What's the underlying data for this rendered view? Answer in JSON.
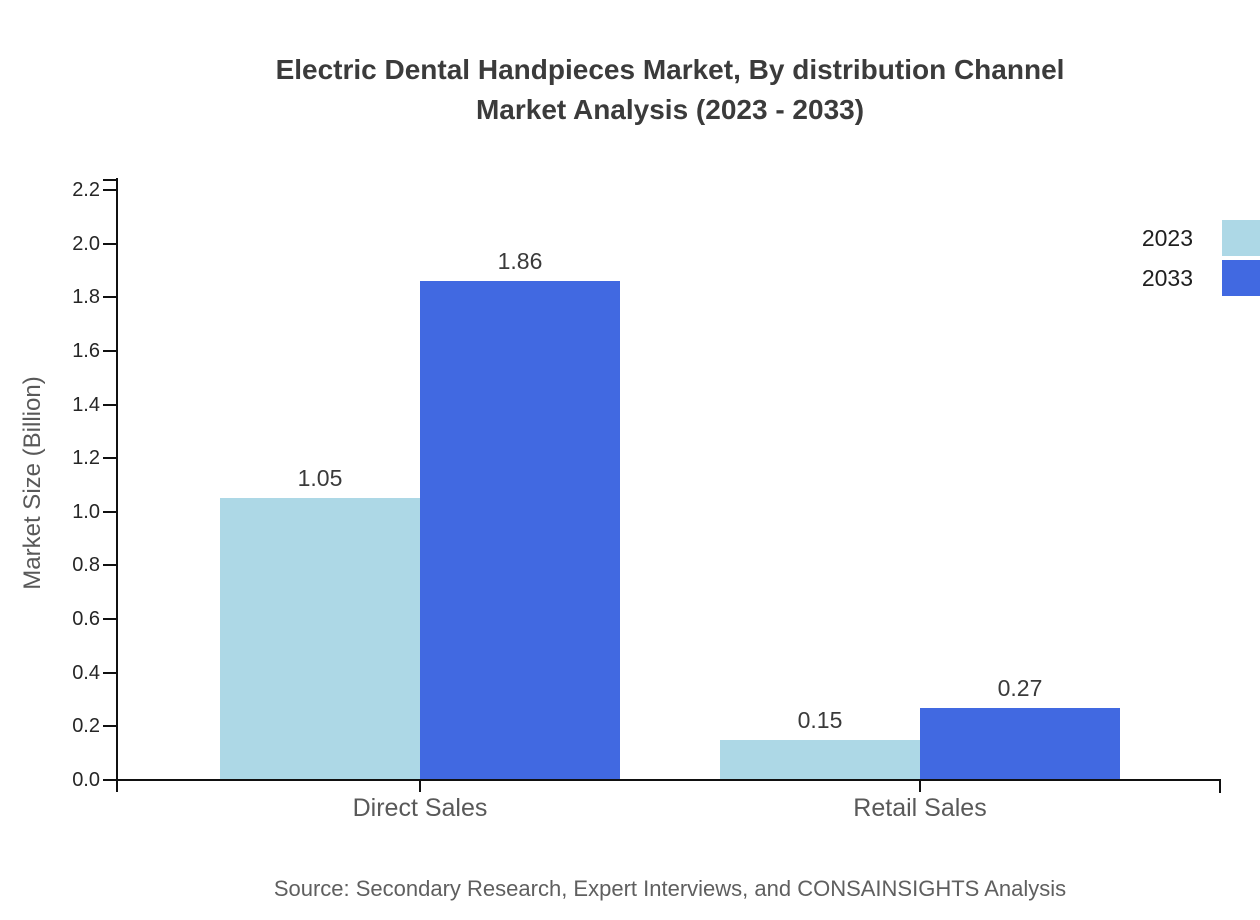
{
  "title": {
    "line1": "Electric Dental Handpieces Market, By distribution Channel",
    "line2": "Market Analysis (2023 - 2033)"
  },
  "source_note": "Source: Secondary Research, Expert Interviews, and CONSAINSIGHTS Analysis",
  "legend": [
    {
      "label": "2023",
      "color": "#ADD8E6"
    },
    {
      "label": "2033",
      "color": "#4169E1"
    }
  ],
  "colors": {
    "series_2023": "#ADD8E6",
    "series_2033": "#4169E1",
    "axis": "#111111",
    "title_text": "#3b3b3b",
    "tick_text": "#262626",
    "category_text": "#595959",
    "value_text": "#3a3a3a",
    "source_text": "#5f5f5f"
  },
  "chart_data": {
    "type": "bar",
    "title": "Electric Dental Handpieces Market, By distribution Channel Market Analysis (2023 - 2033)",
    "categories": [
      "Direct Sales",
      "Retail Sales"
    ],
    "series": [
      {
        "name": "2023",
        "color": "#ADD8E6",
        "values": [
          1.05,
          0.15
        ]
      },
      {
        "name": "2033",
        "color": "#4169E1",
        "values": [
          1.86,
          0.27
        ]
      }
    ],
    "xlabel": "",
    "ylabel": "Market Size (Billion)",
    "ylim": [
      0,
      2.2
    ],
    "ytick_step": 0.2,
    "ytick_decimals": 1,
    "value_label_decimals": 2,
    "grid": false,
    "legend_position": "top-right",
    "value_labels": true
  }
}
